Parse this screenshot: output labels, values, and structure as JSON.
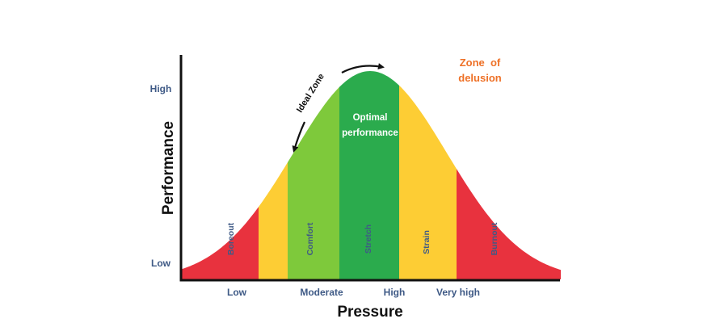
{
  "colors": {
    "red": "#e8323e",
    "yellow": "#fdcd34",
    "light_green": "#7ec93b",
    "dark_green": "#2bab4d",
    "axis": "#111111",
    "tick_text": "#3f5a86",
    "delusion_text": "#ee7127"
  },
  "axes": {
    "y_title": "Performance",
    "x_title": "Pressure",
    "y_ticks": [
      "High",
      "Low"
    ],
    "x_ticks": [
      "Low",
      "Moderate",
      "High",
      "Very high"
    ]
  },
  "zones": {
    "boreout": "Boreout",
    "comfort": "Comfort",
    "stretch": "Stretch",
    "strain": "Strain",
    "burnout": "Burnout"
  },
  "annotations": {
    "optimal_line1": "Optimal",
    "optimal_line2": "performance",
    "ideal_zone": "Ideal Zone",
    "delusion_line1": "Zone  of",
    "delusion_line2": "delusion"
  }
}
